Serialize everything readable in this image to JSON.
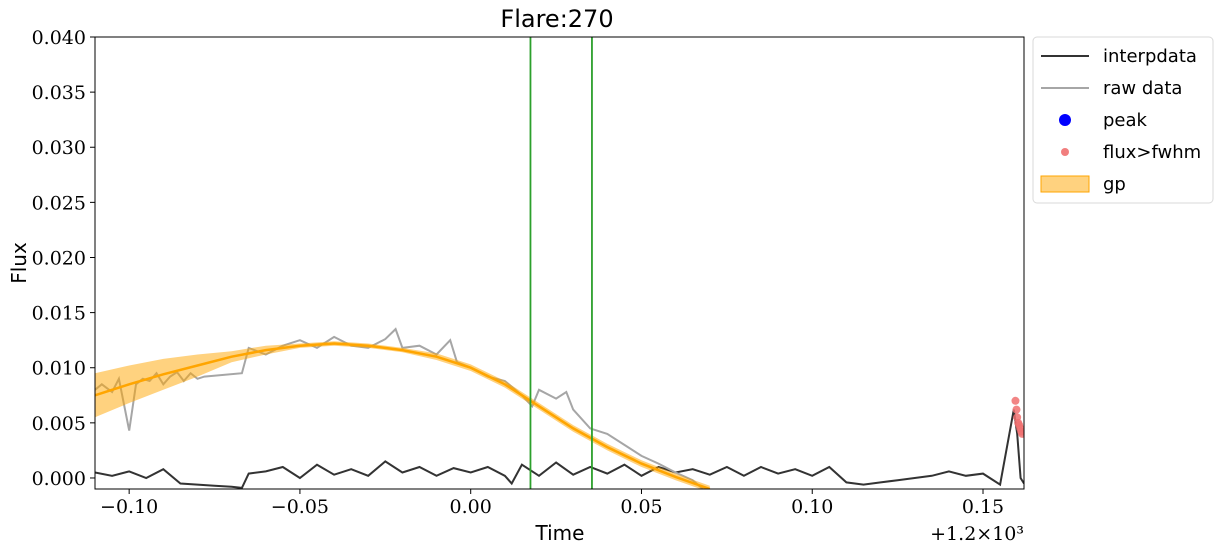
{
  "chart_data": {
    "type": "line",
    "title": "Flare:270",
    "xlabel": "Time",
    "ylabel": "Flux",
    "xlim": [
      -0.11,
      0.162
    ],
    "ylim": [
      -0.001,
      0.04
    ],
    "x_offset_text": "+1.2×10³",
    "x_ticks": [
      -0.1,
      -0.05,
      0.0,
      0.05,
      0.1,
      0.15
    ],
    "x_tick_labels": [
      "−0.10",
      "−0.05",
      "0.00",
      "0.05",
      "0.10",
      "0.15"
    ],
    "y_ticks": [
      0.0,
      0.005,
      0.01,
      0.015,
      0.02,
      0.025,
      0.03,
      0.035,
      0.04
    ],
    "y_tick_labels": [
      "0.000",
      "0.005",
      "0.010",
      "0.015",
      "0.020",
      "0.025",
      "0.030",
      "0.035",
      "0.040"
    ],
    "grid": false,
    "legend_position": "outside-right-top",
    "vlines": [
      {
        "x": 0.0175,
        "color": "#2ca02c"
      },
      {
        "x": 0.0355,
        "color": "#2ca02c"
      }
    ],
    "series": [
      {
        "name": "interpdata",
        "kind": "line",
        "color": "#333333",
        "x": [
          -0.11,
          -0.105,
          -0.1,
          -0.095,
          -0.09,
          -0.085,
          -0.08,
          -0.075,
          -0.07,
          -0.067,
          -0.065,
          -0.06,
          -0.055,
          -0.05,
          -0.045,
          -0.04,
          -0.035,
          -0.03,
          -0.025,
          -0.02,
          -0.015,
          -0.01,
          -0.005,
          0.0,
          0.005,
          0.01,
          0.012,
          0.015,
          0.02,
          0.025,
          0.03,
          0.035,
          0.04,
          0.045,
          0.05,
          0.055,
          0.06,
          0.065,
          0.07,
          0.075,
          0.08,
          0.085,
          0.09,
          0.095,
          0.1,
          0.105,
          0.11,
          0.115,
          0.12,
          0.125,
          0.13,
          0.135,
          0.14,
          0.145,
          0.15,
          0.155,
          0.159,
          0.16,
          0.161,
          0.162
        ],
        "y": [
          0.0005,
          0.0002,
          0.0006,
          0.0,
          0.0008,
          -0.0005,
          -0.0006,
          -0.0007,
          -0.0008,
          -0.0009,
          0.0004,
          0.0006,
          0.001,
          0.0,
          0.0012,
          0.0003,
          0.0008,
          0.0002,
          0.0015,
          0.0005,
          0.001,
          0.0002,
          0.0009,
          0.0005,
          0.001,
          0.0002,
          -0.0005,
          0.0012,
          0.0002,
          0.0014,
          0.0003,
          0.001,
          0.0004,
          0.0012,
          0.0002,
          0.001,
          0.0005,
          0.0008,
          0.0003,
          0.001,
          0.0002,
          0.001,
          0.0004,
          0.0008,
          0.0002,
          0.001,
          -0.0004,
          -0.0006,
          -0.0004,
          -0.0002,
          0.0,
          0.0002,
          0.0006,
          0.0002,
          0.0004,
          -0.0006,
          0.0062,
          0.004,
          0.0,
          -0.0005
        ]
      },
      {
        "name": "raw data",
        "kind": "line",
        "color": "#a6a6a6",
        "x": [
          -0.11,
          -0.108,
          -0.105,
          -0.103,
          -0.1,
          -0.098,
          -0.096,
          -0.094,
          -0.092,
          -0.09,
          -0.088,
          -0.086,
          -0.084,
          -0.082,
          -0.08,
          -0.078,
          -0.067,
          -0.065,
          -0.06,
          -0.055,
          -0.05,
          -0.045,
          -0.04,
          -0.035,
          -0.03,
          -0.025,
          -0.022,
          -0.02,
          -0.015,
          -0.01,
          -0.006,
          -0.004,
          0.0,
          0.005,
          0.01,
          0.015,
          0.018,
          0.02,
          0.025,
          0.028,
          0.03,
          0.035,
          0.04,
          0.045,
          0.05,
          0.055,
          0.06,
          0.065,
          0.068
        ],
        "y": [
          0.008,
          0.0085,
          0.0078,
          0.009,
          0.0043,
          0.0085,
          0.009,
          0.0088,
          0.0095,
          0.0085,
          0.0092,
          0.0096,
          0.0088,
          0.0095,
          0.009,
          0.0092,
          0.0095,
          0.0118,
          0.0112,
          0.012,
          0.0125,
          0.0118,
          0.0128,
          0.012,
          0.0118,
          0.0126,
          0.0135,
          0.0118,
          0.012,
          0.0112,
          0.0125,
          0.0105,
          0.01,
          0.0092,
          0.0088,
          0.0075,
          0.0065,
          0.008,
          0.0072,
          0.0078,
          0.0062,
          0.0045,
          0.004,
          0.003,
          0.002,
          0.0013,
          0.0005,
          -0.0002,
          -0.001
        ]
      },
      {
        "name": "gp",
        "kind": "band",
        "color": "#ffa500",
        "x": [
          -0.11,
          -0.1,
          -0.09,
          -0.08,
          -0.07,
          -0.06,
          -0.05,
          -0.04,
          -0.03,
          -0.02,
          -0.01,
          0.0,
          0.01,
          0.02,
          0.03,
          0.04,
          0.05,
          0.06,
          0.07
        ],
        "mean": [
          0.0075,
          0.0085,
          0.0094,
          0.0102,
          0.011,
          0.0116,
          0.012,
          0.0122,
          0.012,
          0.0116,
          0.011,
          0.01,
          0.0085,
          0.0065,
          0.0045,
          0.0028,
          0.0013,
          0.0001,
          -0.001
        ],
        "lower": [
          0.0055,
          0.0068,
          0.008,
          0.0092,
          0.0105,
          0.0112,
          0.0118,
          0.012,
          0.0118,
          0.0114,
          0.0107,
          0.0097,
          0.0082,
          0.0062,
          0.0042,
          0.0025,
          0.001,
          -0.0002,
          -0.0013
        ],
        "upper": [
          0.0095,
          0.0102,
          0.0108,
          0.0112,
          0.0115,
          0.012,
          0.0122,
          0.0124,
          0.0122,
          0.0118,
          0.0113,
          0.0103,
          0.0088,
          0.0068,
          0.0048,
          0.0031,
          0.0016,
          0.0004,
          -0.0007
        ]
      },
      {
        "name": "peak",
        "kind": "scatter",
        "color": "#0000ff",
        "x": [],
        "y": []
      },
      {
        "name": "flux>fwhm",
        "kind": "scatter",
        "color": "#f07070",
        "x": [
          0.1595,
          0.1598,
          0.16,
          0.1603,
          0.1606,
          0.1609,
          0.1612,
          0.1615
        ],
        "y": [
          0.007,
          0.0062,
          0.0055,
          0.005,
          0.0048,
          0.0045,
          0.0042,
          0.004
        ]
      }
    ],
    "legend": [
      {
        "name": "interpdata",
        "kind": "line",
        "color": "#333333"
      },
      {
        "name": "raw data",
        "kind": "line",
        "color": "#a6a6a6"
      },
      {
        "name": "peak",
        "kind": "dot",
        "color": "#0000ff"
      },
      {
        "name": "flux>fwhm",
        "kind": "dot-small",
        "color": "#f07070"
      },
      {
        "name": "gp",
        "kind": "patch",
        "color": "#ffa500"
      }
    ]
  }
}
